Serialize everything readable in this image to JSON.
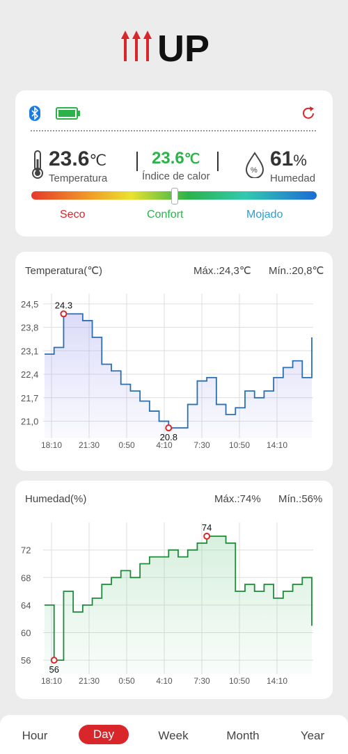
{
  "app": {
    "logo_text": "UP"
  },
  "status": {
    "temperature": {
      "value": "23.6",
      "unit": "℃",
      "label": "Temperatura"
    },
    "heat_index": {
      "value": "23.6",
      "unit": "℃",
      "label": "Índice de calor"
    },
    "humidity": {
      "value": "61",
      "unit": "%",
      "label": "Humedad"
    },
    "comfort_scale": [
      "Seco",
      "Confort",
      "Mojado"
    ],
    "comfort_level": 0.5,
    "colors": {
      "seco": "#d8262a",
      "confort": "#2bb34a",
      "mojado": "#2a9fd6"
    }
  },
  "temp_chart": {
    "title": "Temperatura(℃)",
    "max": "Máx.:24,3℃",
    "min": "Mín.:20,8℃",
    "max_label": "24.3",
    "min_label": "20.8",
    "yticks": [
      "24,5",
      "23,8",
      "23,1",
      "22,4",
      "21,7",
      "21,0"
    ],
    "xticks": [
      "18:10",
      "21:30",
      "0:50",
      "4:10",
      "7:30",
      "10:50",
      "14:10"
    ],
    "color": "#2a6fb5"
  },
  "hum_chart": {
    "title": "Humedad(%)",
    "max": "Máx.:74%",
    "min": "Mín.:56%",
    "max_label": "74",
    "min_label": "56",
    "yticks": [
      "72",
      "68",
      "64",
      "60",
      "56"
    ],
    "xticks": [
      "18:10",
      "21:30",
      "0:50",
      "4:10",
      "7:30",
      "10:50",
      "14:10"
    ],
    "color": "#1e8a3a"
  },
  "chart_data": [
    {
      "type": "line",
      "title": "Temperatura(℃)",
      "ylabel": "",
      "ylim": [
        20.7,
        24.6
      ],
      "x": [
        "18:10",
        "19:00",
        "19:30",
        "20:00",
        "21:30",
        "23:00",
        "0:50",
        "2:00",
        "3:30",
        "4:10",
        "5:00",
        "6:00",
        "7:10",
        "7:30",
        "8:40",
        "9:30",
        "10:10",
        "10:30",
        "11:20",
        "12:00",
        "12:20",
        "13:00",
        "13:30",
        "14:10",
        "14:40",
        "15:30",
        "16:10",
        "17:00",
        "17:30"
      ],
      "series": [
        {
          "values": [
            23.0,
            23.2,
            24.2,
            24.2,
            24.0,
            23.5,
            22.7,
            22.5,
            22.1,
            21.9,
            21.6,
            21.3,
            21.0,
            20.8,
            20.8,
            21.5,
            22.2,
            22.3,
            21.5,
            21.2,
            21.4,
            21.9,
            21.7,
            21.9,
            22.3,
            22.6,
            22.8,
            22.3,
            23.5
          ]
        }
      ]
    },
    {
      "type": "line",
      "title": "Humedad(%)",
      "ylabel": "",
      "ylim": [
        55,
        75
      ],
      "x": [
        "18:10",
        "18:20",
        "18:40",
        "19:10",
        "20:00",
        "21:30",
        "23:00",
        "0:00",
        "0:50",
        "1:30",
        "2:30",
        "4:10",
        "5:30",
        "6:30",
        "7:30",
        "8:00",
        "9:00",
        "9:30",
        "10:00",
        "10:20",
        "10:50",
        "11:30",
        "12:30",
        "13:30",
        "14:10",
        "15:00",
        "16:00",
        "17:00",
        "17:30"
      ],
      "series": [
        {
          "values": [
            64,
            56,
            66,
            63,
            64,
            65,
            67,
            68,
            69,
            68,
            70,
            71,
            71,
            72,
            71,
            72,
            73,
            74,
            74,
            73,
            66,
            67,
            66,
            67,
            65,
            66,
            67,
            68,
            61
          ]
        }
      ]
    }
  ],
  "nav": {
    "tabs": [
      "Hour",
      "Day",
      "Week",
      "Month",
      "Year"
    ],
    "active": "Day"
  }
}
